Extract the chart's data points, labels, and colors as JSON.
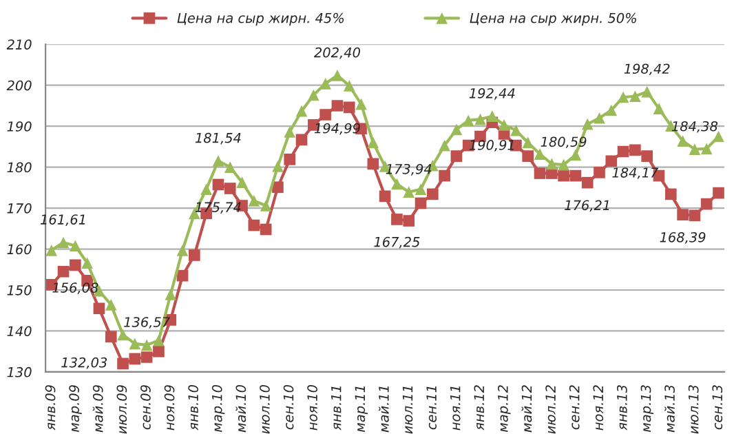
{
  "chart_data": {
    "type": "line",
    "categories": [
      "янв.09",
      null,
      "мар.09",
      null,
      "май.09",
      null,
      "июл.09",
      null,
      "сен.09",
      null,
      "ноя.09",
      null,
      "янв.10",
      null,
      "мар.10",
      null,
      "май.10",
      null,
      "июл.10",
      null,
      "сен.10",
      null,
      "ноя.10",
      null,
      "янв.11",
      null,
      "мар.11",
      null,
      "май.11",
      null,
      "июл.11",
      null,
      "сен.11",
      null,
      "ноя.11",
      null,
      "янв.12",
      null,
      "мар.12",
      null,
      "май.12",
      null,
      "июл.12",
      null,
      "сен.12",
      null,
      "ноя.12",
      null,
      "янв.13",
      null,
      "мар.13",
      null,
      "май.13",
      null,
      "июл.13",
      null,
      "сен.13"
    ],
    "series": [
      {
        "name": "Цена на сыр жирн. 45%",
        "color": "#c0504d",
        "marker": "square",
        "values": [
          151.3,
          154.5,
          156.08,
          152.3,
          145.5,
          138.6,
          132.03,
          133.2,
          133.6,
          135,
          142.7,
          153.5,
          158.5,
          168.7,
          175.74,
          174.8,
          170.6,
          165.8,
          164.8,
          175.1,
          181.9,
          186.7,
          190.3,
          192.8,
          194.99,
          194.6,
          189.4,
          180.8,
          172.9,
          167.25,
          166.9,
          171.2,
          173.4,
          177.9,
          182.7,
          185.3,
          187.5,
          190.91,
          188.1,
          185.3,
          182.7,
          178.5,
          178.5,
          177.9,
          177.9,
          176.21,
          178.7,
          181.5,
          183.8,
          184.17,
          182.7,
          177.9,
          173.4,
          168.39,
          168.2,
          171,
          173.7
        ],
        "value_labels": [
          null,
          null,
          "156,08",
          null,
          null,
          null,
          "132,03",
          null,
          null,
          null,
          null,
          null,
          null,
          null,
          "175,74",
          null,
          null,
          null,
          null,
          null,
          null,
          null,
          null,
          null,
          "194,99",
          null,
          null,
          null,
          null,
          "167,25",
          null,
          null,
          null,
          null,
          null,
          null,
          null,
          "190,91",
          null,
          null,
          null,
          null,
          null,
          null,
          null,
          "176,21",
          null,
          null,
          null,
          "184,17",
          null,
          null,
          null,
          "168,39",
          null,
          null,
          null
        ]
      },
      {
        "name": "Цена на сыр жирн. 50%",
        "color": "#9bbb59",
        "marker": "triangle",
        "values": [
          159.7,
          161.61,
          160.8,
          156.6,
          149.8,
          146.4,
          139.1,
          136.9,
          136.57,
          137.7,
          148.9,
          159.7,
          168.7,
          174.6,
          181.54,
          180,
          176.3,
          171.8,
          170.6,
          180.2,
          188.6,
          193.7,
          197.6,
          200.4,
          202.4,
          199.9,
          195.4,
          186,
          180.2,
          175.9,
          173.94,
          174.6,
          180.4,
          185.3,
          189.2,
          191.4,
          191.7,
          192.44,
          190.3,
          189,
          186,
          183.2,
          180.8,
          180.59,
          183,
          190.5,
          192,
          193.9,
          197.1,
          197.3,
          198.42,
          194.3,
          190.1,
          186.4,
          184.38,
          184.5,
          187.5
        ],
        "value_labels": [
          null,
          "161,61",
          null,
          null,
          null,
          null,
          null,
          null,
          "136,57",
          null,
          null,
          null,
          null,
          null,
          "181,54",
          null,
          null,
          null,
          null,
          null,
          null,
          null,
          null,
          null,
          "202,40",
          null,
          null,
          null,
          null,
          null,
          "173,94",
          null,
          null,
          null,
          null,
          null,
          null,
          "192,44",
          null,
          null,
          null,
          null,
          null,
          "180,59",
          null,
          null,
          null,
          null,
          null,
          null,
          "198,42",
          null,
          null,
          null,
          "184,38",
          null,
          null
        ]
      }
    ],
    "ylim": [
      130,
      210
    ],
    "yticks": [
      130,
      140,
      150,
      160,
      170,
      180,
      190,
      200,
      210
    ],
    "grid": "y",
    "legend": "top",
    "line_style": "solid"
  }
}
